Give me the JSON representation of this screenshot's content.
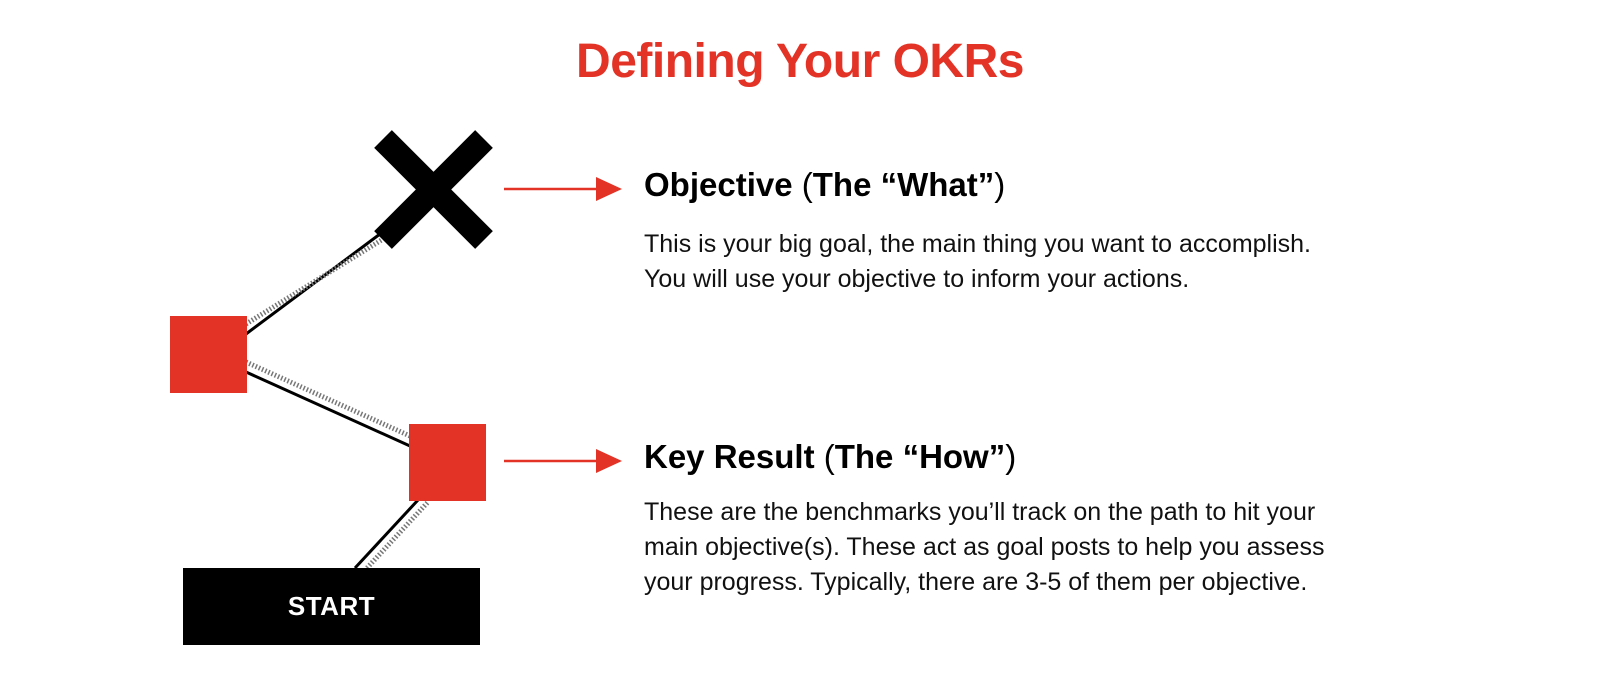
{
  "title": "Defining Your OKRs",
  "colors": {
    "accent": "#e33226",
    "dark": "#000000",
    "background": "#ffffff"
  },
  "start_label": "START",
  "objective": {
    "heading_strong": "Objective",
    "heading_paren_open": "(",
    "heading_mid": "The “What”",
    "heading_paren_close": ")",
    "lines": [
      "This is your big goal, the main thing you want to accomplish.",
      "You will use your objective to inform your actions."
    ]
  },
  "key_result": {
    "heading_strong": "Key Result",
    "heading_paren_open": "(",
    "heading_mid": "The “How”",
    "heading_paren_close": ")",
    "lines": [
      "These are the benchmarks you’ll track on the path to hit your",
      "main objective(s). These act as goal posts to help you assess",
      "your progress. Typically, there are 3-5 of them per objective."
    ]
  },
  "icons": [
    "x-mark-icon",
    "arrow-right-icon"
  ]
}
